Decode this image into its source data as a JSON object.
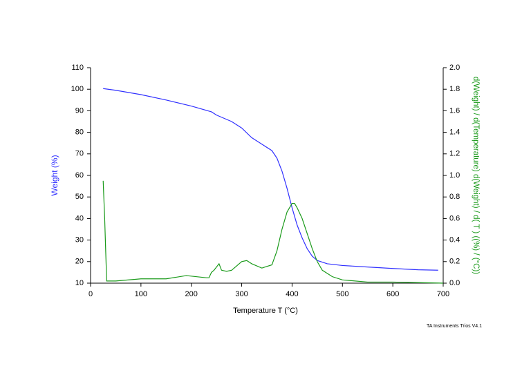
{
  "chart_data": {
    "type": "line",
    "xlabel": "Temperature T (°C)",
    "ylabel": "Weight (%)",
    "y2label": "d(Weight) / d(Temperature) d(Weight) / d( T ) ((%) / (°C))",
    "footer": "TA Instruments Trios V4.1",
    "xlim": [
      0,
      700
    ],
    "xticks": [
      0,
      100,
      200,
      300,
      400,
      500,
      600,
      700
    ],
    "ylim": [
      10,
      110
    ],
    "yticks": [
      10,
      20,
      30,
      40,
      50,
      60,
      70,
      80,
      90,
      100,
      110
    ],
    "y2lim": [
      0,
      2
    ],
    "y2ticks": [
      {
        "value": 0,
        "label": "0.0"
      },
      0.2,
      0.4,
      0.6,
      0.8,
      {
        "value": 1,
        "label": "1.0"
      },
      1.2,
      1.4,
      1.6,
      1.8,
      {
        "value": 2,
        "label": "2.0"
      }
    ],
    "series": [
      {
        "color": "#3030ff",
        "axis": "y",
        "x": [
          25,
          50,
          100,
          150,
          200,
          240,
          250,
          260,
          280,
          300,
          320,
          340,
          360,
          370,
          380,
          390,
          400,
          410,
          420,
          430,
          440,
          450,
          470,
          500,
          550,
          600,
          650,
          690
        ],
        "values": [
          100.3,
          99.5,
          97.5,
          95,
          92.2,
          89.5,
          88,
          87,
          85,
          82,
          77.5,
          74.5,
          71.5,
          68,
          62,
          54,
          45,
          37,
          31,
          26,
          22.5,
          20.5,
          19,
          18.2,
          17.5,
          16.8,
          16.2,
          16
        ]
      },
      {
        "color": "#1a9a1a",
        "axis": "y2",
        "x": [
          25,
          28,
          30,
          32,
          50,
          100,
          150,
          190,
          230,
          235,
          240,
          245,
          250,
          255,
          260,
          270,
          280,
          300,
          310,
          320,
          340,
          360,
          370,
          380,
          390,
          400,
          405,
          410,
          420,
          430,
          440,
          450,
          460,
          480,
          500,
          550,
          600,
          700
        ],
        "values": [
          0.95,
          0.6,
          0.3,
          0.02,
          0.02,
          0.04,
          0.04,
          0.07,
          0.05,
          0.05,
          0.1,
          0.12,
          0.15,
          0.18,
          0.12,
          0.11,
          0.12,
          0.2,
          0.21,
          0.18,
          0.14,
          0.17,
          0.3,
          0.5,
          0.66,
          0.74,
          0.74,
          0.7,
          0.6,
          0.46,
          0.32,
          0.2,
          0.12,
          0.06,
          0.03,
          0.01,
          0.01,
          0
        ]
      }
    ]
  }
}
